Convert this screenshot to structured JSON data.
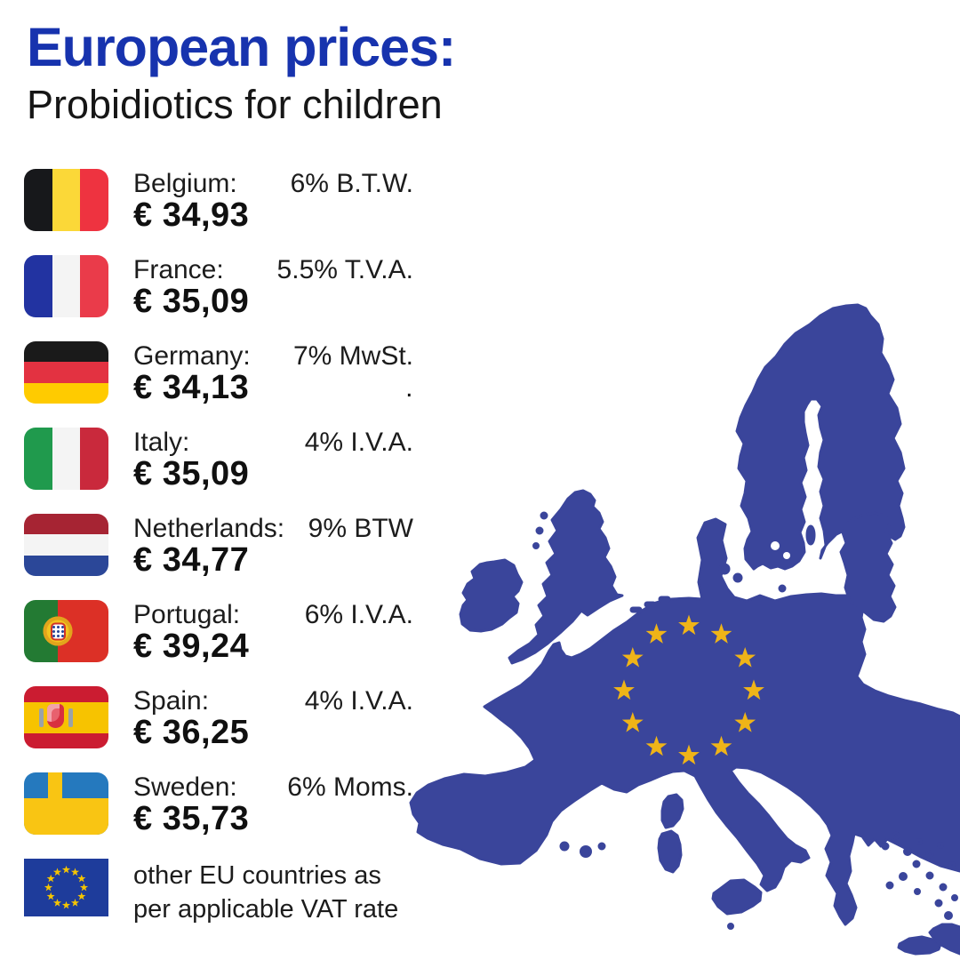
{
  "header": {
    "title": "European prices:",
    "subtitle": "Probidiotics for children",
    "title_color": "#1733ae"
  },
  "rows": [
    {
      "country": "Belgium:",
      "tax": "6% B.T.W.",
      "price": "€ 34,93",
      "flag": {
        "name": "belgium-flag",
        "type": "vertical",
        "stripes": [
          "#17181b",
          "#fbd838",
          "#ee3340"
        ]
      }
    },
    {
      "country": "France:",
      "tax": "5.5% T.V.A.",
      "price": "€ 35,09",
      "flag": {
        "name": "france-flag",
        "type": "vertical",
        "stripes": [
          "#2233a1",
          "#f4f4f4",
          "#ea3b4a"
        ]
      }
    },
    {
      "country": "Germany:",
      "tax": "7% MwSt.",
      "price": "€ 34,13",
      "period_note": ".",
      "flag": {
        "name": "germany-flag",
        "type": "horizontal",
        "stripes": [
          "#1a1a1a",
          "#e33241",
          "#ffcb00"
        ]
      }
    },
    {
      "country": "Italy:",
      "tax": "4% I.V.A.",
      "price": "€ 35,09",
      "flag": {
        "name": "italy-flag",
        "type": "vertical",
        "stripes": [
          "#209a4d",
          "#f4f4f4",
          "#c9293c"
        ]
      }
    },
    {
      "country": "Netherlands:",
      "tax": "9% BTW",
      "price": "€ 34,77",
      "flag": {
        "name": "netherlands-flag",
        "type": "horizontal",
        "stripes": [
          "#a62433",
          "#f4f4f4",
          "#2b4798"
        ]
      }
    },
    {
      "country": "Portugal:",
      "tax": "6% I.V.A.",
      "price": "€ 39,24",
      "flag": {
        "name": "portugal-flag",
        "type": "vertical",
        "stripes": [
          "#237a33",
          "#dc3026"
        ],
        "weights": [
          2,
          3
        ],
        "emblem": "portugal"
      }
    },
    {
      "country": "Spain:",
      "tax": "4% I.V.A.",
      "price": "€ 36,25",
      "flag": {
        "name": "spain-flag",
        "type": "horizontal",
        "stripes": [
          "#cb1c31",
          "#f7c300",
          "#cb1c31"
        ],
        "weights": [
          1,
          2,
          1
        ],
        "emblem": "spain"
      }
    },
    {
      "country": "Sweden:",
      "tax": "6% Moms.",
      "price": "€ 35,73",
      "flag": {
        "name": "sweden-flag",
        "type": "cross",
        "field": "#2579be",
        "cross": "#f9c513"
      }
    }
  ],
  "footer_row": {
    "line1": "other EU countries as",
    "line2": "per applicable VAT rate",
    "flag": {
      "name": "eu-flag",
      "field": "#1e3c9b",
      "stars": {
        "count": 12,
        "color": "#f6c500"
      }
    }
  },
  "map": {
    "name": "europe-eu-map",
    "fill": "#3a459b",
    "stars": {
      "count": 12,
      "color": "#efb418"
    }
  }
}
